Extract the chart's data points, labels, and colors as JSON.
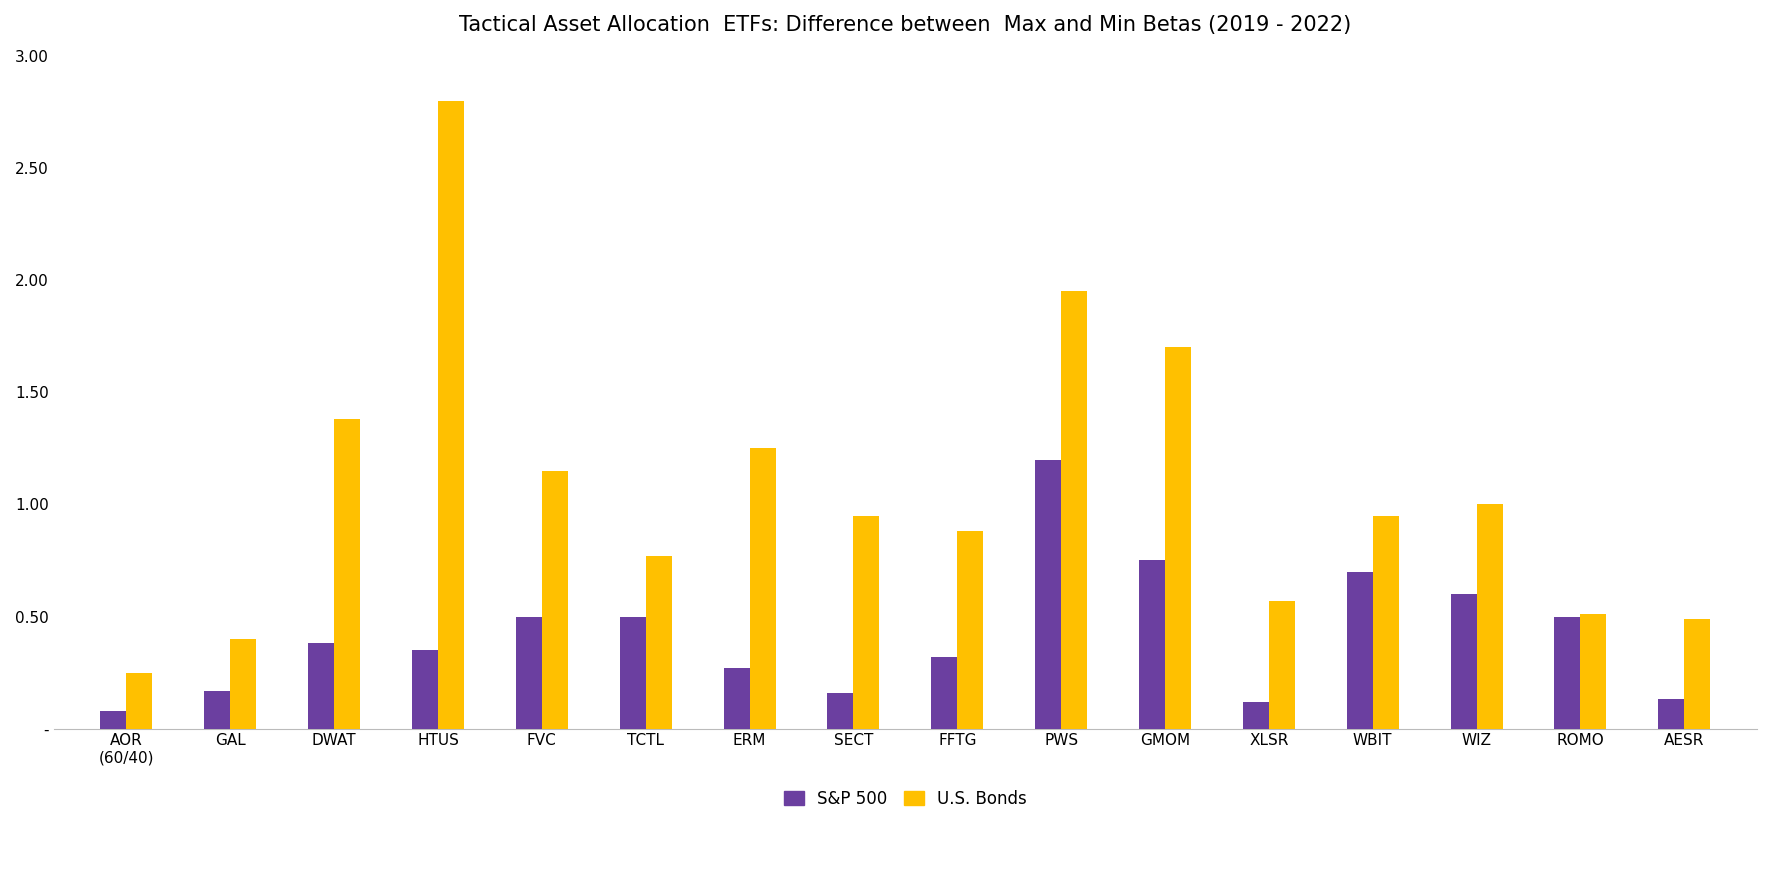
{
  "title": "Tactical Asset Allocation  ETFs: Difference between  Max and Min Betas (2019 - 2022)",
  "categories": [
    "AOR\n(60/40)",
    "GAL",
    "DWAT",
    "HTUS",
    "FVC",
    "TCTL",
    "ERM",
    "SECT",
    "FFTG",
    "PWS",
    "GMOM",
    "XLSR",
    "WBIT",
    "WIZ",
    "ROMO",
    "AESR"
  ],
  "sp500": [
    0.08,
    0.17,
    0.38,
    0.35,
    0.5,
    0.5,
    0.27,
    0.16,
    0.32,
    1.2,
    0.75,
    0.12,
    0.7,
    0.6,
    0.5,
    0.13
  ],
  "us_bonds": [
    0.25,
    0.4,
    1.38,
    2.8,
    1.15,
    0.77,
    1.25,
    0.95,
    0.88,
    1.95,
    1.7,
    0.57,
    0.95,
    1.0,
    0.51,
    0.49
  ],
  "sp500_color": "#6B3FA0",
  "us_bonds_color": "#FFC000",
  "background_color": "#FFFFFF",
  "ylim": [
    0,
    3.0
  ],
  "yticks": [
    0.0,
    0.5,
    1.0,
    1.5,
    2.0,
    2.5,
    3.0
  ],
  "ytick_labels": [
    "-",
    "0.50",
    "1.00",
    "1.50",
    "2.00",
    "2.50",
    "3.00"
  ],
  "legend_sp500": "S&P 500",
  "legend_bonds": "U.S. Bonds",
  "bar_width": 0.25,
  "title_fontsize": 15
}
